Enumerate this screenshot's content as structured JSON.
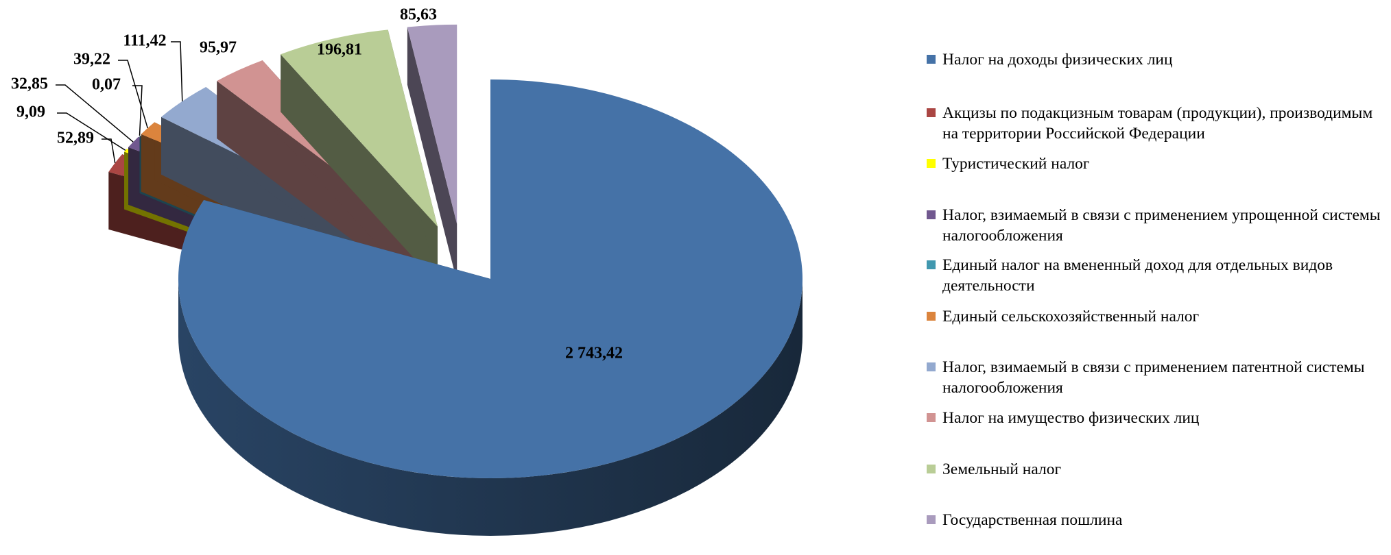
{
  "chart_data": {
    "type": "pie",
    "categories": [
      "Налог на доходы физических лиц",
      "Акцизы по подакцизным товарам (продукции), производимым на территории Российской Федерации",
      "Туристический налог",
      "Налог, взимаемый в связи с применением упрощенной системы налогообложения",
      "Единый налог на вмененный доход для отдельных видов деятельности",
      "Единый сельскохозяйственный налог",
      "Налог, взимаемый в связи с применением патентной системы налогообложения",
      "Налог на имущество физических лиц",
      "Земельный налог",
      "Государственная пошлина"
    ],
    "values": [
      2743.42,
      52.89,
      9.09,
      32.85,
      0.07,
      39.22,
      111.42,
      95.97,
      196.81,
      85.63
    ],
    "value_labels": [
      "2 743,42",
      "52,89",
      "9,09",
      "32,85",
      "0,07",
      "39,22",
      "111,42",
      "95,97",
      "196,81",
      "85,63"
    ],
    "colors": [
      "#4572a7",
      "#aa4643",
      "#ffff00",
      "#71588f",
      "#4198af",
      "#db843d",
      "#93a9cf",
      "#d19392",
      "#b9cd96",
      "#a99bbd"
    ],
    "legend": "right"
  }
}
